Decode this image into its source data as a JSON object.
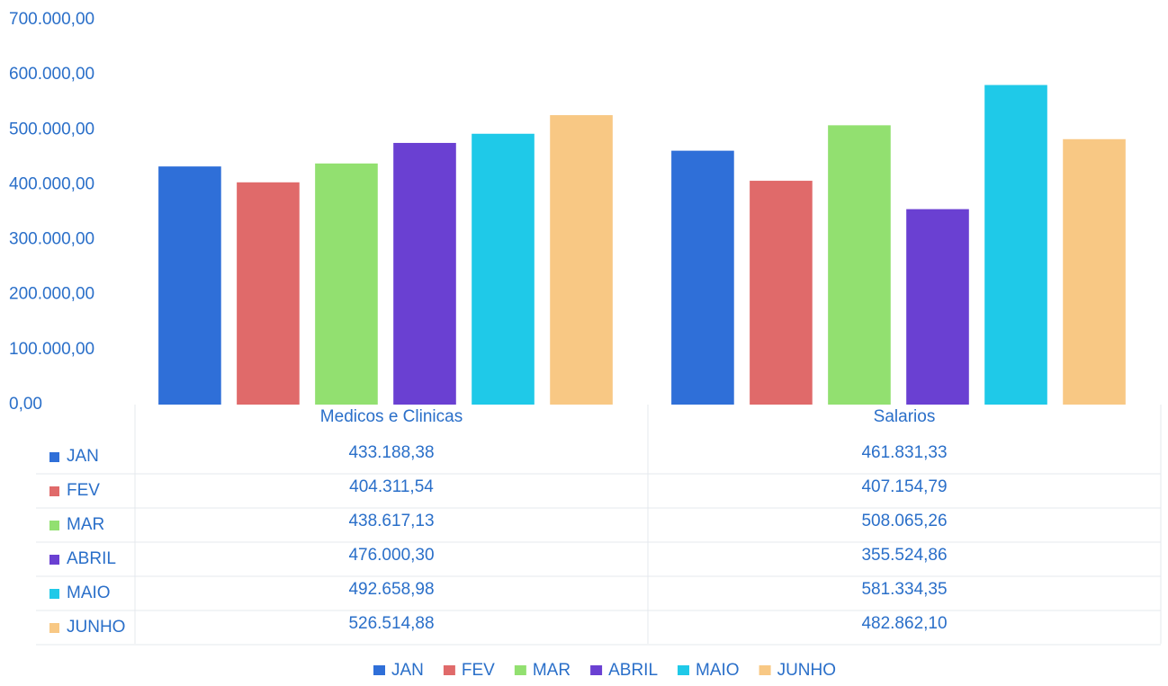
{
  "chart_data": {
    "type": "bar",
    "categories": [
      "Medicos e Clinicas",
      "Salarios"
    ],
    "series": [
      {
        "name": "JAN",
        "color": "#2f6fd8",
        "values": [
          433188.38,
          461831.33
        ],
        "value_labels": [
          "433.188,38",
          "461.831,33"
        ]
      },
      {
        "name": "FEV",
        "color": "#e06a6a",
        "values": [
          404311.54,
          407154.79
        ],
        "value_labels": [
          "404.311,54",
          "407.154,79"
        ]
      },
      {
        "name": "MAR",
        "color": "#92e070",
        "values": [
          438617.13,
          508065.26
        ],
        "value_labels": [
          "438.617,13",
          "508.065,26"
        ]
      },
      {
        "name": "ABRIL",
        "color": "#6a40d2",
        "values": [
          476000.3,
          355524.86
        ],
        "value_labels": [
          "476.000,30",
          "355.524,86"
        ]
      },
      {
        "name": "MAIO",
        "color": "#1fc9e8",
        "values": [
          492658.98,
          581334.35
        ],
        "value_labels": [
          "492.658,98",
          "581.334,35"
        ]
      },
      {
        "name": "JUNHO",
        "color": "#f8c884",
        "values": [
          526514.88,
          482862.1
        ],
        "value_labels": [
          "526.514,88",
          "482.862,10"
        ]
      }
    ],
    "ylim": [
      0,
      700000
    ],
    "yticks": [
      {
        "value": 0,
        "label": "0,00"
      },
      {
        "value": 100000,
        "label": "100.000,00"
      },
      {
        "value": 200000,
        "label": "200.000,00"
      },
      {
        "value": 300000,
        "label": "300.000,00"
      },
      {
        "value": 400000,
        "label": "400.000,00"
      },
      {
        "value": 500000,
        "label": "500.000,00"
      },
      {
        "value": 600000,
        "label": "600.000,00"
      },
      {
        "value": 700000,
        "label": "700.000,00"
      }
    ],
    "legend": "bottom"
  }
}
